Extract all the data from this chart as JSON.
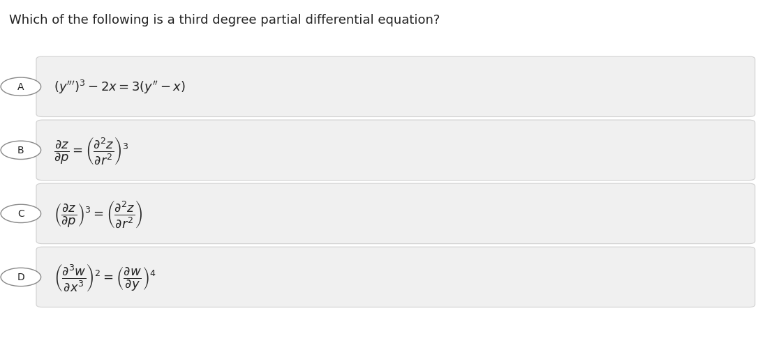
{
  "title": "Which of the following is a third degree partial differential equation?",
  "background_color": "#ffffff",
  "option_box_color": "#f0f0f0",
  "option_border_color": "#d0d0d0",
  "circle_color": "#ffffff",
  "circle_border_color": "#888888",
  "text_color": "#222222",
  "options": [
    "A",
    "B",
    "C",
    "D"
  ],
  "fig_width": 11.06,
  "fig_height": 5.06,
  "dpi": 100
}
